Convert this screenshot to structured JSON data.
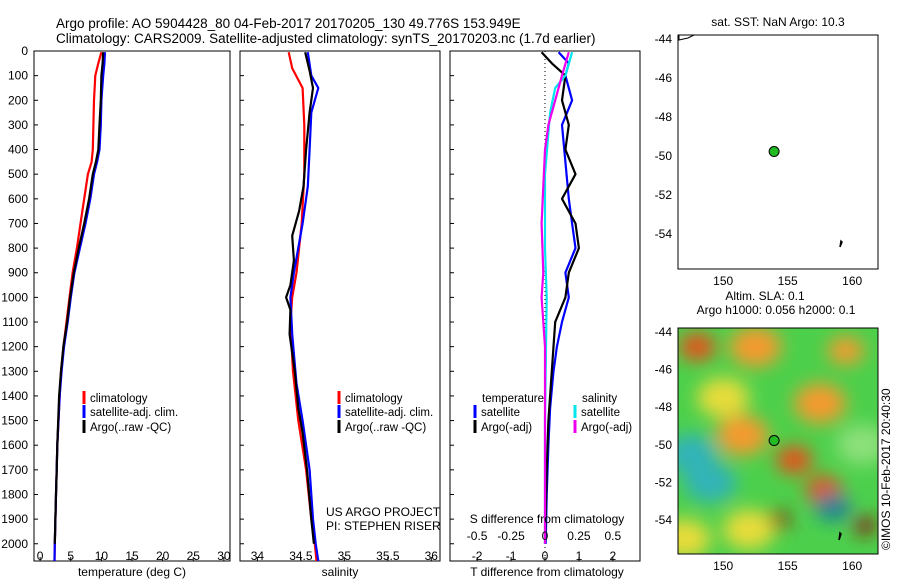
{
  "header": {
    "line1": "Argo profile: AO 5904428_80 04-Feb-2017 20170205_130 49.776S 153.949E",
    "line2": "Climatology: CARS2009. Satellite-adjusted climatology: synTS_20170203.nc (1.7d earlier)"
  },
  "colors": {
    "climatology": "#ff0000",
    "satellite": "#0000ff",
    "argo": "#000000",
    "sal_satellite": "#00e5ee",
    "sal_argo": "#ee00ee",
    "marker": "#22bb22"
  },
  "credits": {
    "project": "US ARGO PROJECT",
    "pi": "PI: STEPHEN RISER",
    "stamp": "©IMOS 10-Feb-2017 20:40:30"
  },
  "legend_profiles": [
    "climatology",
    "satellite-adj. clim.",
    "Argo(..raw -QC)"
  ],
  "legend_diff": {
    "temp_title": "temperature",
    "sal_title": "salinity",
    "temp_items": [
      "satellite",
      "Argo(-adj)"
    ],
    "sal_items": [
      "satellite",
      "Argo(-adj)"
    ]
  },
  "chart_data": [
    {
      "type": "line",
      "panel": "temperature",
      "xlabel": "temperature (deg C)",
      "ylabel": "",
      "xlim": [
        -1,
        31
      ],
      "ylim": [
        2070,
        0
      ],
      "xticks": [
        0,
        5,
        10,
        15,
        20,
        25,
        30
      ],
      "yticks": [
        0,
        100,
        200,
        300,
        400,
        500,
        600,
        700,
        800,
        900,
        1000,
        1100,
        1200,
        1300,
        1400,
        1500,
        1600,
        1700,
        1800,
        1900,
        2000
      ],
      "series": [
        {
          "name": "climatology",
          "color": "#ff0000",
          "points": [
            [
              10.0,
              5
            ],
            [
              9.5,
              50
            ],
            [
              9.0,
              100
            ],
            [
              8.8,
              200
            ],
            [
              8.7,
              300
            ],
            [
              8.6,
              400
            ],
            [
              8.4,
              450
            ],
            [
              7.8,
              500
            ],
            [
              7.2,
              600
            ],
            [
              6.6,
              700
            ],
            [
              6.0,
              800
            ],
            [
              5.3,
              900
            ],
            [
              4.8,
              1000
            ],
            [
              4.3,
              1100
            ],
            [
              3.8,
              1200
            ],
            [
              3.4,
              1300
            ],
            [
              3.2,
              1400
            ],
            [
              3.0,
              1500
            ],
            [
              2.8,
              1600
            ],
            [
              2.7,
              1700
            ],
            [
              2.6,
              1800
            ],
            [
              2.5,
              1900
            ],
            [
              2.4,
              2000
            ],
            [
              2.35,
              2070
            ]
          ]
        },
        {
          "name": "satellite-adj. clim.",
          "color": "#0000ff",
          "points": [
            [
              10.6,
              5
            ],
            [
              10.5,
              50
            ],
            [
              10.3,
              100
            ],
            [
              10.0,
              200
            ],
            [
              9.9,
              300
            ],
            [
              9.7,
              400
            ],
            [
              9.3,
              450
            ],
            [
              8.8,
              500
            ],
            [
              8.2,
              600
            ],
            [
              7.4,
              700
            ],
            [
              6.5,
              800
            ],
            [
              5.6,
              900
            ],
            [
              5.0,
              1000
            ],
            [
              4.5,
              1100
            ],
            [
              3.9,
              1200
            ],
            [
              3.5,
              1300
            ],
            [
              3.2,
              1400
            ],
            [
              3.0,
              1500
            ],
            [
              2.8,
              1600
            ],
            [
              2.7,
              1700
            ],
            [
              2.6,
              1800
            ],
            [
              2.5,
              1900
            ],
            [
              2.4,
              2000
            ],
            [
              2.35,
              2070
            ]
          ]
        },
        {
          "name": "Argo(..raw -QC)",
          "color": "#000000",
          "points": [
            [
              10.3,
              5
            ],
            [
              10.2,
              50
            ],
            [
              10.0,
              100
            ],
            [
              9.9,
              200
            ],
            [
              9.7,
              300
            ],
            [
              9.5,
              400
            ],
            [
              9.1,
              450
            ],
            [
              8.6,
              500
            ],
            [
              8.0,
              600
            ],
            [
              7.2,
              700
            ],
            [
              6.3,
              800
            ],
            [
              5.5,
              900
            ],
            [
              4.9,
              1000
            ],
            [
              4.4,
              1100
            ],
            [
              3.8,
              1200
            ],
            [
              3.4,
              1300
            ],
            [
              3.1,
              1400
            ],
            [
              2.95,
              1500
            ],
            [
              2.8,
              1600
            ],
            [
              2.7,
              1700
            ],
            [
              2.6,
              1800
            ],
            [
              2.5,
              1900
            ],
            [
              2.4,
              2000
            ]
          ]
        }
      ]
    },
    {
      "type": "line",
      "panel": "salinity",
      "xlabel": "salinity",
      "ylabel": "",
      "xlim": [
        33.8,
        36.1
      ],
      "ylim": [
        2070,
        0
      ],
      "xticks": [
        34,
        34.5,
        35,
        35.5,
        36
      ],
      "series": [
        {
          "name": "climatology",
          "color": "#ff0000",
          "points": [
            [
              34.36,
              5
            ],
            [
              34.4,
              70
            ],
            [
              34.52,
              150
            ],
            [
              34.54,
              300
            ],
            [
              34.54,
              500
            ],
            [
              34.51,
              700
            ],
            [
              34.45,
              900
            ],
            [
              34.4,
              1000
            ],
            [
              34.38,
              1100
            ],
            [
              34.41,
              1300
            ],
            [
              34.47,
              1500
            ],
            [
              34.56,
              1700
            ],
            [
              34.62,
              1900
            ],
            [
              34.66,
              2000
            ],
            [
              34.68,
              2070
            ]
          ]
        },
        {
          "name": "satellite-adj. clim.",
          "color": "#0000ff",
          "points": [
            [
              34.58,
              5
            ],
            [
              34.62,
              100
            ],
            [
              34.7,
              150
            ],
            [
              34.62,
              250
            ],
            [
              34.6,
              400
            ],
            [
              34.58,
              550
            ],
            [
              34.52,
              700
            ],
            [
              34.42,
              900
            ],
            [
              34.38,
              1000
            ],
            [
              34.4,
              1150
            ],
            [
              34.45,
              1350
            ],
            [
              34.52,
              1500
            ],
            [
              34.6,
              1700
            ],
            [
              34.64,
              1900
            ],
            [
              34.67,
              2000
            ],
            [
              34.7,
              2070
            ]
          ]
        },
        {
          "name": "Argo(..raw -QC)",
          "color": "#000000",
          "points": [
            [
              34.55,
              5
            ],
            [
              34.6,
              80
            ],
            [
              34.64,
              150
            ],
            [
              34.6,
              250
            ],
            [
              34.56,
              400
            ],
            [
              34.53,
              550
            ],
            [
              34.48,
              650
            ],
            [
              34.4,
              750
            ],
            [
              34.42,
              850
            ],
            [
              34.38,
              950
            ],
            [
              34.33,
              1000
            ],
            [
              34.38,
              1050
            ],
            [
              34.37,
              1150
            ],
            [
              34.43,
              1300
            ],
            [
              34.47,
              1450
            ],
            [
              34.52,
              1550
            ],
            [
              34.57,
              1700
            ],
            [
              34.62,
              1900
            ],
            [
              34.65,
              2000
            ]
          ]
        }
      ]
    },
    {
      "type": "line",
      "panel": "differences",
      "xlabel": "T difference from climatology",
      "xlabel_top": "S difference from climatology",
      "ylabel": "",
      "xlim": [
        -2.8,
        2.8
      ],
      "ylim": [
        2070,
        0
      ],
      "xticks": [
        -2,
        -1,
        0,
        1,
        2
      ],
      "xticks_s": [
        -0.5,
        -0.25,
        0,
        0.25,
        0.5
      ],
      "series": [
        {
          "name": "temperature satellite",
          "color": "#0000ff",
          "points": [
            [
              0.4,
              5
            ],
            [
              0.7,
              50
            ],
            [
              0.6,
              100
            ],
            [
              0.8,
              200
            ],
            [
              0.5,
              300
            ],
            [
              0.6,
              450
            ],
            [
              0.7,
              600
            ],
            [
              0.8,
              700
            ],
            [
              0.9,
              800
            ],
            [
              0.6,
              900
            ],
            [
              0.7,
              1000
            ],
            [
              0.5,
              1100
            ],
            [
              0.35,
              1200
            ],
            [
              0.25,
              1300
            ],
            [
              0.15,
              1450
            ],
            [
              0.1,
              1600
            ],
            [
              0.05,
              1800
            ],
            [
              0.02,
              2000
            ]
          ]
        },
        {
          "name": "temperature Argo(-adj)",
          "color": "#000000",
          "points": [
            [
              -0.1,
              5
            ],
            [
              0.2,
              50
            ],
            [
              0.6,
              100
            ],
            [
              0.5,
              200
            ],
            [
              0.7,
              300
            ],
            [
              0.6,
              400
            ],
            [
              0.9,
              500
            ],
            [
              0.5,
              600
            ],
            [
              0.9,
              700
            ],
            [
              1.0,
              800
            ],
            [
              0.7,
              900
            ],
            [
              0.6,
              1000
            ],
            [
              0.3,
              1100
            ],
            [
              0.2,
              1300
            ],
            [
              0.1,
              1500
            ],
            [
              0.05,
              1700
            ],
            [
              0.02,
              1900
            ],
            [
              0.0,
              2000
            ]
          ]
        },
        {
          "name": "salinity satellite",
          "color": "#00e5ee",
          "points": [
            [
              0.8,
              5
            ],
            [
              0.6,
              100
            ],
            [
              0.3,
              150
            ],
            [
              0.15,
              250
            ],
            [
              0.0,
              500
            ],
            [
              0.0,
              800
            ],
            [
              0.05,
              1000
            ],
            [
              0.0,
              1500
            ],
            [
              0.0,
              2000
            ]
          ]
        },
        {
          "name": "salinity Argo(-adj)",
          "color": "#ee00ee",
          "points": [
            [
              0.7,
              5
            ],
            [
              0.5,
              100
            ],
            [
              0.3,
              200
            ],
            [
              0.1,
              300
            ],
            [
              0.0,
              400
            ],
            [
              -0.05,
              550
            ],
            [
              -0.1,
              700
            ],
            [
              -0.05,
              900
            ],
            [
              -0.1,
              1000
            ],
            [
              0.0,
              1200
            ],
            [
              0.0,
              1500
            ],
            [
              0.0,
              2000
            ]
          ]
        }
      ]
    },
    {
      "type": "scatter",
      "panel": "sst-map",
      "title": "sat. SST: NaN Argo: 10.3",
      "xlim": [
        146.5,
        162
      ],
      "ylim": [
        -55.8,
        -43.8
      ],
      "xticks": [
        150,
        155,
        160
      ],
      "yticks": [
        -44,
        -46,
        -48,
        -50,
        -52,
        -54
      ],
      "points": [
        {
          "x": 153.949,
          "y": -49.776
        }
      ]
    },
    {
      "type": "heatmap",
      "panel": "sla-map",
      "title": "Altim. SLA: 0.1",
      "subtitle": "Argo h1000: 0.056 h2000: 0.1",
      "xlim": [
        146.5,
        162
      ],
      "ylim": [
        -55.8,
        -43.8
      ],
      "xticks": [
        150,
        155,
        160
      ],
      "yticks": [
        -44,
        -46,
        -48,
        -50,
        -52,
        -54
      ],
      "points": [
        {
          "x": 153.949,
          "y": -49.776
        }
      ],
      "blobs": [
        {
          "x": 148,
          "y": -44.8,
          "v": 0.9
        },
        {
          "x": 152.5,
          "y": -44.8,
          "v": 0.7
        },
        {
          "x": 159.5,
          "y": -45,
          "v": 0.75
        },
        {
          "x": 150,
          "y": -47.5,
          "v": 0.5
        },
        {
          "x": 157.5,
          "y": -47.8,
          "v": 0.6
        },
        {
          "x": 147.5,
          "y": -50.5,
          "v": -0.7
        },
        {
          "x": 149,
          "y": -52,
          "v": -0.6
        },
        {
          "x": 151.5,
          "y": -49.5,
          "v": 0.6
        },
        {
          "x": 155.5,
          "y": -50.8,
          "v": 0.8
        },
        {
          "x": 157.8,
          "y": -52.4,
          "v": 0.85
        },
        {
          "x": 154.3,
          "y": -54,
          "v": 1.0
        },
        {
          "x": 152,
          "y": -54.5,
          "v": 0.55
        },
        {
          "x": 158.5,
          "y": -53.3,
          "v": -0.8
        },
        {
          "x": 161,
          "y": -54.3,
          "v": 0.95
        },
        {
          "x": 160.8,
          "y": -50,
          "v": -0.4
        },
        {
          "x": 147,
          "y": -55,
          "v": 0.5
        }
      ]
    }
  ]
}
